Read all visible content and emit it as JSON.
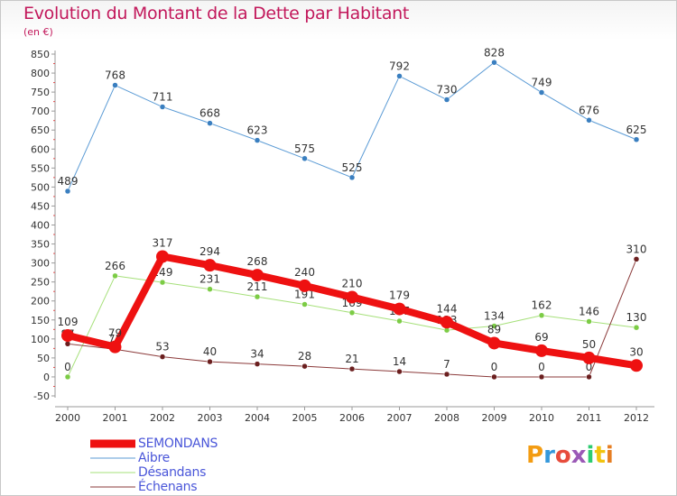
{
  "title": "Evolution du Montant de la Dette par Habitant",
  "subtitle": "(en €)",
  "logo": {
    "text": "Proxiti",
    "colors": [
      "#f39c12",
      "#3498db",
      "#e74c3c",
      "#9b59b6",
      "#2ecc71",
      "#f1c40f",
      "#e67e22"
    ]
  },
  "chart_data": {
    "type": "line",
    "title": "Evolution du Montant de la Dette par Habitant",
    "ylabel": "(en €)",
    "x": [
      2000,
      2001,
      2002,
      2003,
      2004,
      2005,
      2006,
      2007,
      2008,
      2009,
      2010,
      2011,
      2012
    ],
    "ylim": [
      -50,
      850
    ],
    "yticks": [
      -50,
      0,
      50,
      100,
      150,
      200,
      250,
      300,
      350,
      400,
      450,
      500,
      550,
      600,
      650,
      700,
      750,
      800,
      850
    ],
    "grid": false,
    "legend": "bottom-left",
    "series": [
      {
        "name": "Aibre",
        "color": "#5b9bd5",
        "point": "#3a7fc0",
        "width": 1,
        "marker": 3,
        "values": [
          489,
          768,
          711,
          668,
          623,
          575,
          525,
          792,
          730,
          828,
          749,
          676,
          625
        ]
      },
      {
        "name": "Désandans",
        "color": "#a6e07a",
        "point": "#7ccc45",
        "width": 1,
        "marker": 3,
        "values": [
          0,
          266,
          249,
          231,
          211,
          191,
          169,
          147,
          123,
          134,
          162,
          146,
          130
        ]
      },
      {
        "name": "Échenans",
        "color": "#8b3a3a",
        "point": "#6b1f1f",
        "width": 1,
        "marker": 3,
        "values": [
          87,
          73,
          53,
          40,
          34,
          28,
          21,
          14,
          7,
          0,
          0,
          0,
          310
        ]
      },
      {
        "name": "SEMONDANS",
        "color": "#ee1111",
        "point": "#ee1111",
        "width": 8,
        "marker": 7,
        "values": [
          109,
          79,
          317,
          294,
          268,
          240,
          210,
          179,
          144,
          89,
          69,
          50,
          30
        ]
      }
    ],
    "legend_order": [
      "SEMONDANS",
      "Aibre",
      "Désandans",
      "Échenans"
    ],
    "legend_label_colors": {
      "SEMONDANS": "#4a56d9",
      "Aibre": "#4a56d9",
      "Désandans": "#4a56d9",
      "Échenans": "#4a56d9"
    }
  }
}
